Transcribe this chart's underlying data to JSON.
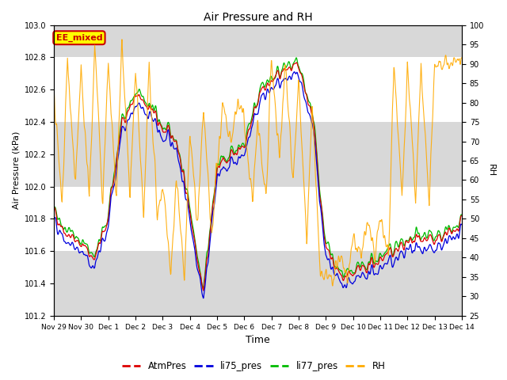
{
  "title": "Air Pressure and RH",
  "ylabel_left": "Air Pressure (kPa)",
  "ylabel_right": "RH",
  "xlabel": "Time",
  "annotation_text": "EE_mixed",
  "annotation_bg": "#ffff00",
  "annotation_border": "#cc0000",
  "annotation_text_color": "#cc0000",
  "ylim_left": [
    101.2,
    103.0
  ],
  "ylim_right": [
    25,
    100
  ],
  "yticks_left": [
    101.2,
    101.4,
    101.6,
    101.8,
    102.0,
    102.2,
    102.4,
    102.6,
    102.8,
    103.0
  ],
  "yticks_right": [
    25,
    30,
    35,
    40,
    45,
    50,
    55,
    60,
    65,
    70,
    75,
    80,
    85,
    90,
    95,
    100
  ],
  "xtick_labels": [
    "Nov 29",
    "Nov 30",
    "Dec 1",
    "Dec 2",
    "Dec 3",
    "Dec 4",
    "Dec 5",
    "Dec 6",
    "Dec 7",
    "Dec 8",
    "Dec 9",
    "Dec 10",
    "Dec 11",
    "Dec 12",
    "Dec 13",
    "Dec 14"
  ],
  "colors": {
    "AtmPres": "#dd0000",
    "li75_pres": "#0000dd",
    "li77_pres": "#00bb00",
    "RH": "#ffaa00"
  },
  "n_points": 1500,
  "seed": 42,
  "bg_band_alpha": 0.5,
  "band_gray": "#d8d8d8"
}
